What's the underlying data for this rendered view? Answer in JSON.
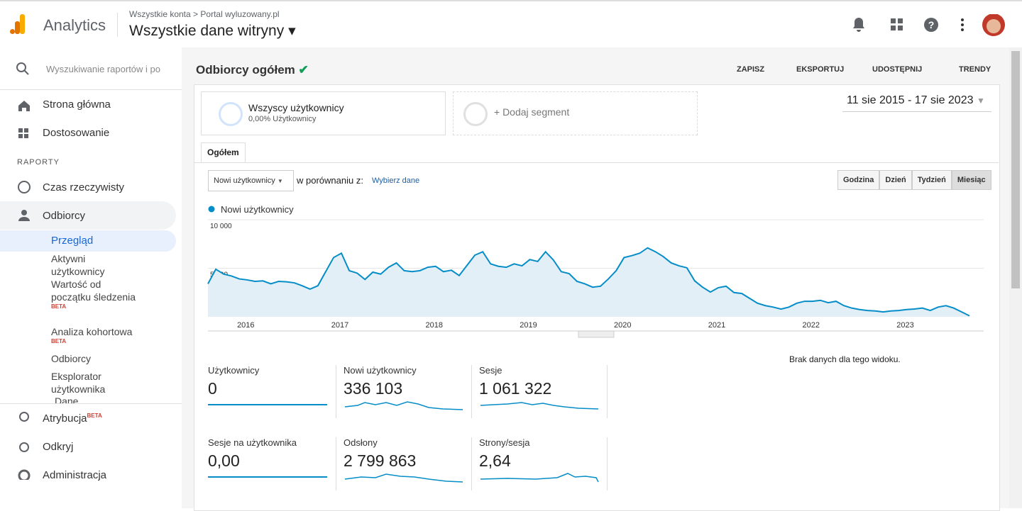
{
  "header": {
    "app": "Analytics",
    "breadcrumb": [
      "Wszystkie konta",
      "Portal wyluzowany.pl"
    ],
    "view": "Wszystkie dane witryny"
  },
  "sidebar": {
    "search": "Wyszukiwanie raportów i po",
    "home": "Strona główna",
    "custom": "Dostosowanie",
    "section": "RAPORTY",
    "realtime": "Czas rzeczywisty",
    "audience": "Odbiorcy",
    "subitems": [
      {
        "label": "Przegląd"
      },
      {
        "label": "Aktywni użytkownicy"
      },
      {
        "label": "Wartość od początku śledzenia",
        "badge": "BETA"
      },
      {
        "label": "Analiza kohortowa",
        "badge": "BETA"
      },
      {
        "label": "Odbiorcy"
      },
      {
        "label": "Eksplorator użytkownika"
      },
      {
        "label": "Dane"
      }
    ],
    "attribution": "Atrybucja",
    "attribution_badge": "BETA",
    "discover": "Odkryj",
    "admin": "Administracja"
  },
  "report": {
    "title": "Odbiorcy ogółem",
    "actions": [
      "ZAPISZ",
      "EKSPORTUJ",
      "UDOSTĘPNIJ",
      "TRENDY"
    ],
    "segment": "Wszyscy użytkownicy",
    "segment_sub": "0,00% Użytkownicy",
    "add_segment": "+ Dodaj segment",
    "date_range": "11 sie 2015 - 17 sie 2023",
    "tab": "Ogółem",
    "metric_select": "Nowi użytkownicy",
    "compare": "w porównaniu z:",
    "pick": "Wybierz dane",
    "granularity": [
      "Godzina",
      "Dzień",
      "Tydzień",
      "Miesiąc"
    ],
    "no_data": "Brak danych dla tego widoku.",
    "metrics": [
      {
        "label": "Użytkownicy",
        "value": "0"
      },
      {
        "label": "Nowi użytkownicy",
        "value": "336 103"
      },
      {
        "label": "Sesje",
        "value": "1 061 322"
      },
      {
        "label": "Sesje na użytkownika",
        "value": "0,00"
      },
      {
        "label": "Odsłony",
        "value": "2 799 863"
      },
      {
        "label": "Strony/sesja",
        "value": "2,64"
      }
    ]
  },
  "chart_data": {
    "type": "area",
    "categories": [
      null,
      null,
      null,
      null,
      null,
      "2016",
      null,
      null,
      null,
      null,
      null,
      null,
      null,
      null,
      null,
      null,
      null,
      "2017",
      null,
      null,
      null,
      null,
      null,
      null,
      null,
      null,
      null,
      null,
      null,
      "2018",
      null,
      null,
      null,
      null,
      null,
      null,
      null,
      null,
      null,
      null,
      null,
      "2019",
      null,
      null,
      null,
      null,
      null,
      null,
      null,
      null,
      null,
      null,
      null,
      "2020",
      null,
      null,
      null,
      null,
      null,
      null,
      null,
      null,
      null,
      null,
      null,
      "2021",
      null,
      null,
      null,
      null,
      null,
      null,
      null,
      null,
      null,
      null,
      null,
      "2022",
      null,
      null,
      null,
      null,
      null,
      null,
      null,
      null,
      null,
      null,
      null,
      "2023",
      null,
      null,
      null,
      null,
      null,
      null,
      null,
      null
    ],
    "series": [
      {
        "name": "Nowi użytkownicy",
        "color": "#058dc7",
        "values": [
          3400,
          4900,
          4400,
          4200,
          3900,
          3800,
          3650,
          3700,
          3400,
          3650,
          3600,
          3500,
          3200,
          2850,
          3200,
          4650,
          6100,
          6550,
          4750,
          4500,
          3850,
          4600,
          4400,
          5100,
          5550,
          4750,
          4650,
          4750,
          5100,
          5200,
          4650,
          4800,
          4250,
          5300,
          6350,
          6700,
          5450,
          5200,
          5100,
          5450,
          5250,
          5900,
          5700,
          6700,
          5850,
          4650,
          4450,
          3650,
          3400,
          3050,
          3150,
          3900,
          4750,
          6100,
          6300,
          6550,
          7100,
          6700,
          6200,
          5550,
          5250,
          5050,
          3700,
          3050,
          2550,
          3000,
          3150,
          2500,
          2400,
          1900,
          1400,
          1150,
          1000,
          800,
          1000,
          1400,
          1600,
          1600,
          1700,
          1450,
          1600,
          1150,
          900,
          750,
          650,
          600,
          500,
          600,
          650,
          750,
          800,
          900,
          650,
          1000,
          1150,
          900,
          500,
          100
        ]
      }
    ],
    "ylim": [
      0,
      10000
    ],
    "yticks": [
      {
        "value": 10000,
        "label": "10 000"
      },
      {
        "value": 5000,
        "label": "5 000"
      }
    ],
    "grid": true
  }
}
